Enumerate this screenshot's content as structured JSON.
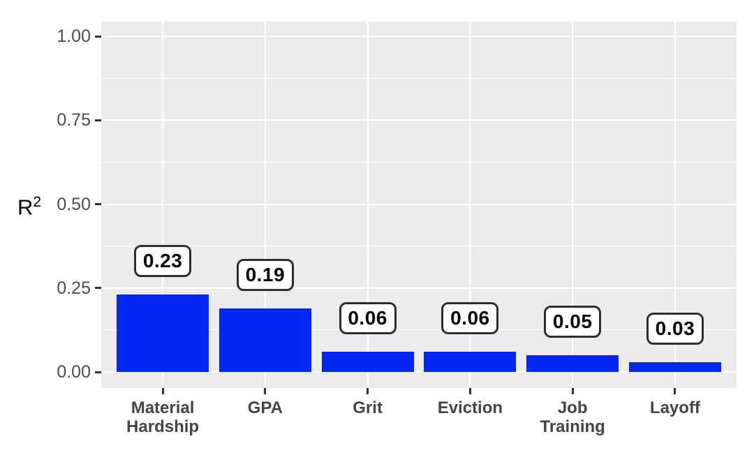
{
  "figure": {
    "ylabel_base": "R",
    "ylabel_sup": "2"
  },
  "chart_data": {
    "type": "bar",
    "title": "",
    "xlabel": "",
    "ylabel": "R^2",
    "categories": [
      "Material\nHardship",
      "GPA",
      "Grit",
      "Eviction",
      "Job\nTraining",
      "Layoff"
    ],
    "values": [
      0.23,
      0.19,
      0.06,
      0.06,
      0.05,
      0.03
    ],
    "value_labels": [
      "0.23",
      "0.19",
      "0.06",
      "0.06",
      "0.05",
      "0.03"
    ],
    "ylim": [
      0,
      1
    ],
    "yticks": [
      0,
      0.25,
      0.5,
      0.75,
      1
    ],
    "ytick_labels": [
      "0.00",
      "0.25",
      "0.50",
      "0.75",
      "1.00"
    ],
    "minor_yticks": [
      0.125,
      0.375,
      0.625,
      0.875
    ],
    "grid": "horizontal major+minor, vertical major at category centers",
    "legend": "none",
    "style": "ggplot2 grey theme, value labels in rounded boxes above bars",
    "colors": {
      "bar": "#0227f2",
      "panel_background": "#ebebeb",
      "gridline": "#ffffff",
      "tick_label": "#4d4d4d",
      "x_label": "#454545",
      "axis_title": "#000000",
      "value_box_border": "#2e2e2e",
      "value_box_background": "#ffffff",
      "value_text": "#000000",
      "figure_background": "#ffffff"
    }
  }
}
